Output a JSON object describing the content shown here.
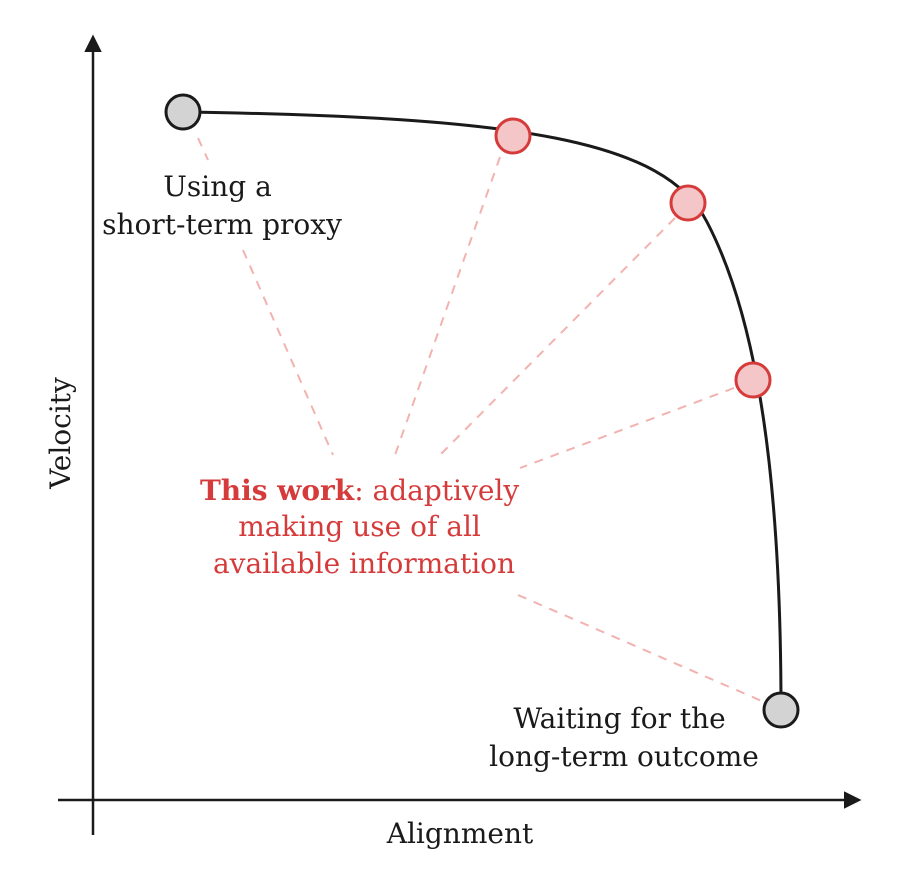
{
  "axes": {
    "x_label": "Alignment",
    "y_label": "Velocity"
  },
  "labels": {
    "short_term": [
      "Using a",
      "short-term proxy"
    ],
    "long_term": [
      "Waiting for the",
      "long-term outcome"
    ],
    "this_work_bold": "This work",
    "this_work_rest": ": adaptively",
    "this_work_line2": "making use of all",
    "this_work_line3": "available information"
  },
  "colors": {
    "accent_red": "#d63b3b",
    "red_fill": "#f5c6c8",
    "gray_fill": "#d3d3d3",
    "dash_pink": "#f2b3b0",
    "ink": "#1a1a1a"
  },
  "nodes": [
    {
      "kind": "endpoint",
      "color": "gray"
    },
    {
      "kind": "adaptive",
      "color": "red"
    },
    {
      "kind": "adaptive",
      "color": "red"
    },
    {
      "kind": "adaptive",
      "color": "red"
    },
    {
      "kind": "endpoint",
      "color": "gray"
    }
  ]
}
